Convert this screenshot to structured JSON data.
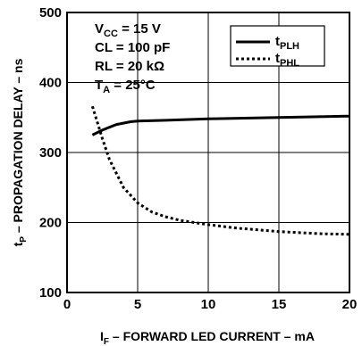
{
  "chart_data": {
    "type": "line",
    "xlabel": {
      "main": "I",
      "sub": "F",
      "rest": " – FORWARD LED CURRENT – mA"
    },
    "ylabel": {
      "main": "t",
      "sub": "P",
      "rest": " – PROPAGATION DELAY – ns"
    },
    "xlim": [
      0,
      20
    ],
    "ylim": [
      100,
      500
    ],
    "xticks": [
      "0",
      "5",
      "10",
      "15",
      "20"
    ],
    "yticks": [
      "100",
      "200",
      "300",
      "400",
      "500"
    ],
    "grid": true,
    "conditions": [
      {
        "main": "V",
        "sub": "CC",
        "rest": " = 15 V"
      },
      {
        "main": "CL = 100 pF",
        "sub": "",
        "rest": ""
      },
      {
        "main": "RL = 20 kΩ",
        "sub": "",
        "rest": ""
      },
      {
        "main": "T",
        "sub": "A",
        "rest": " = 25°C"
      }
    ],
    "legend_position": "top-right",
    "series": [
      {
        "name": {
          "main": "t",
          "sub": "PLH"
        },
        "style": "solid",
        "x": [
          1.8,
          2.5,
          3.5,
          4.5,
          5,
          7,
          10,
          15,
          20
        ],
        "y": [
          325,
          332,
          340,
          344,
          345,
          346,
          348,
          350,
          352
        ]
      },
      {
        "name": {
          "main": "t",
          "sub": "PHL"
        },
        "style": "dotted",
        "x": [
          1.8,
          2.5,
          3,
          4,
          5,
          6,
          7,
          8,
          10,
          12,
          15,
          18,
          20
        ],
        "y": [
          366,
          320,
          290,
          250,
          228,
          215,
          208,
          203,
          197,
          192,
          187,
          184,
          183
        ]
      }
    ]
  }
}
